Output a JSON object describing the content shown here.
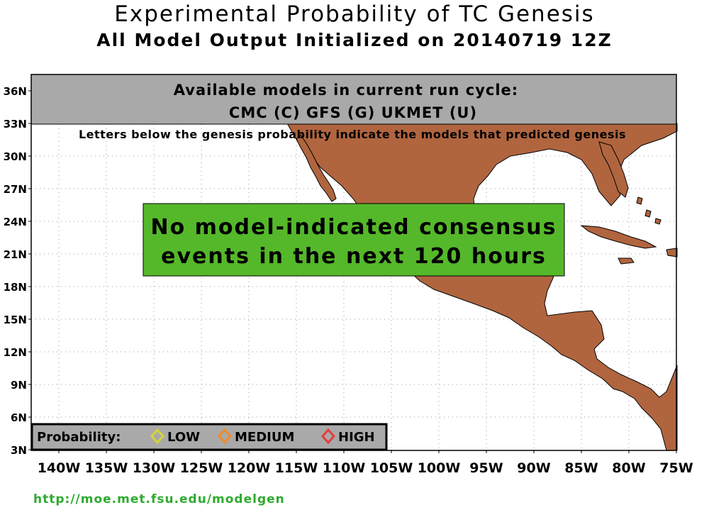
{
  "title": "Experimental Probability of TC Genesis",
  "subtitle": "All Model Output Initialized on 20140719 12Z",
  "models_box": {
    "heading": "Available models in current run cycle:",
    "models": "CMC (C) GFS (G)  UKMET (U)"
  },
  "letters_note": "Letters below the genesis probability indicate the models that predicted genesis",
  "consensus_message": {
    "line1": "No model-indicated consensus",
    "line2": "events in the next 120 hours"
  },
  "legend": {
    "label": "Probability:",
    "items": [
      {
        "label": "LOW",
        "color": "#d4d43a"
      },
      {
        "label": "MEDIUM",
        "color": "#f08c28"
      },
      {
        "label": "HIGH",
        "color": "#e83c3c"
      }
    ]
  },
  "lat_labels": [
    "36N",
    "33N",
    "30N",
    "27N",
    "24N",
    "21N",
    "18N",
    "15N",
    "12N",
    "9N",
    "6N",
    "3N"
  ],
  "lon_labels": [
    "140W",
    "135W",
    "130W",
    "125W",
    "120W",
    "115W",
    "110W",
    "105W",
    "100W",
    "95W",
    "90W",
    "85W",
    "80W",
    "75W"
  ],
  "url": "http://moe.met.fsu.edu/modelgen",
  "colors": {
    "land": "#b0653f",
    "ocean": "#ffffff",
    "header_band": "#a9a9a9",
    "consensus_box": "#55b82a"
  }
}
